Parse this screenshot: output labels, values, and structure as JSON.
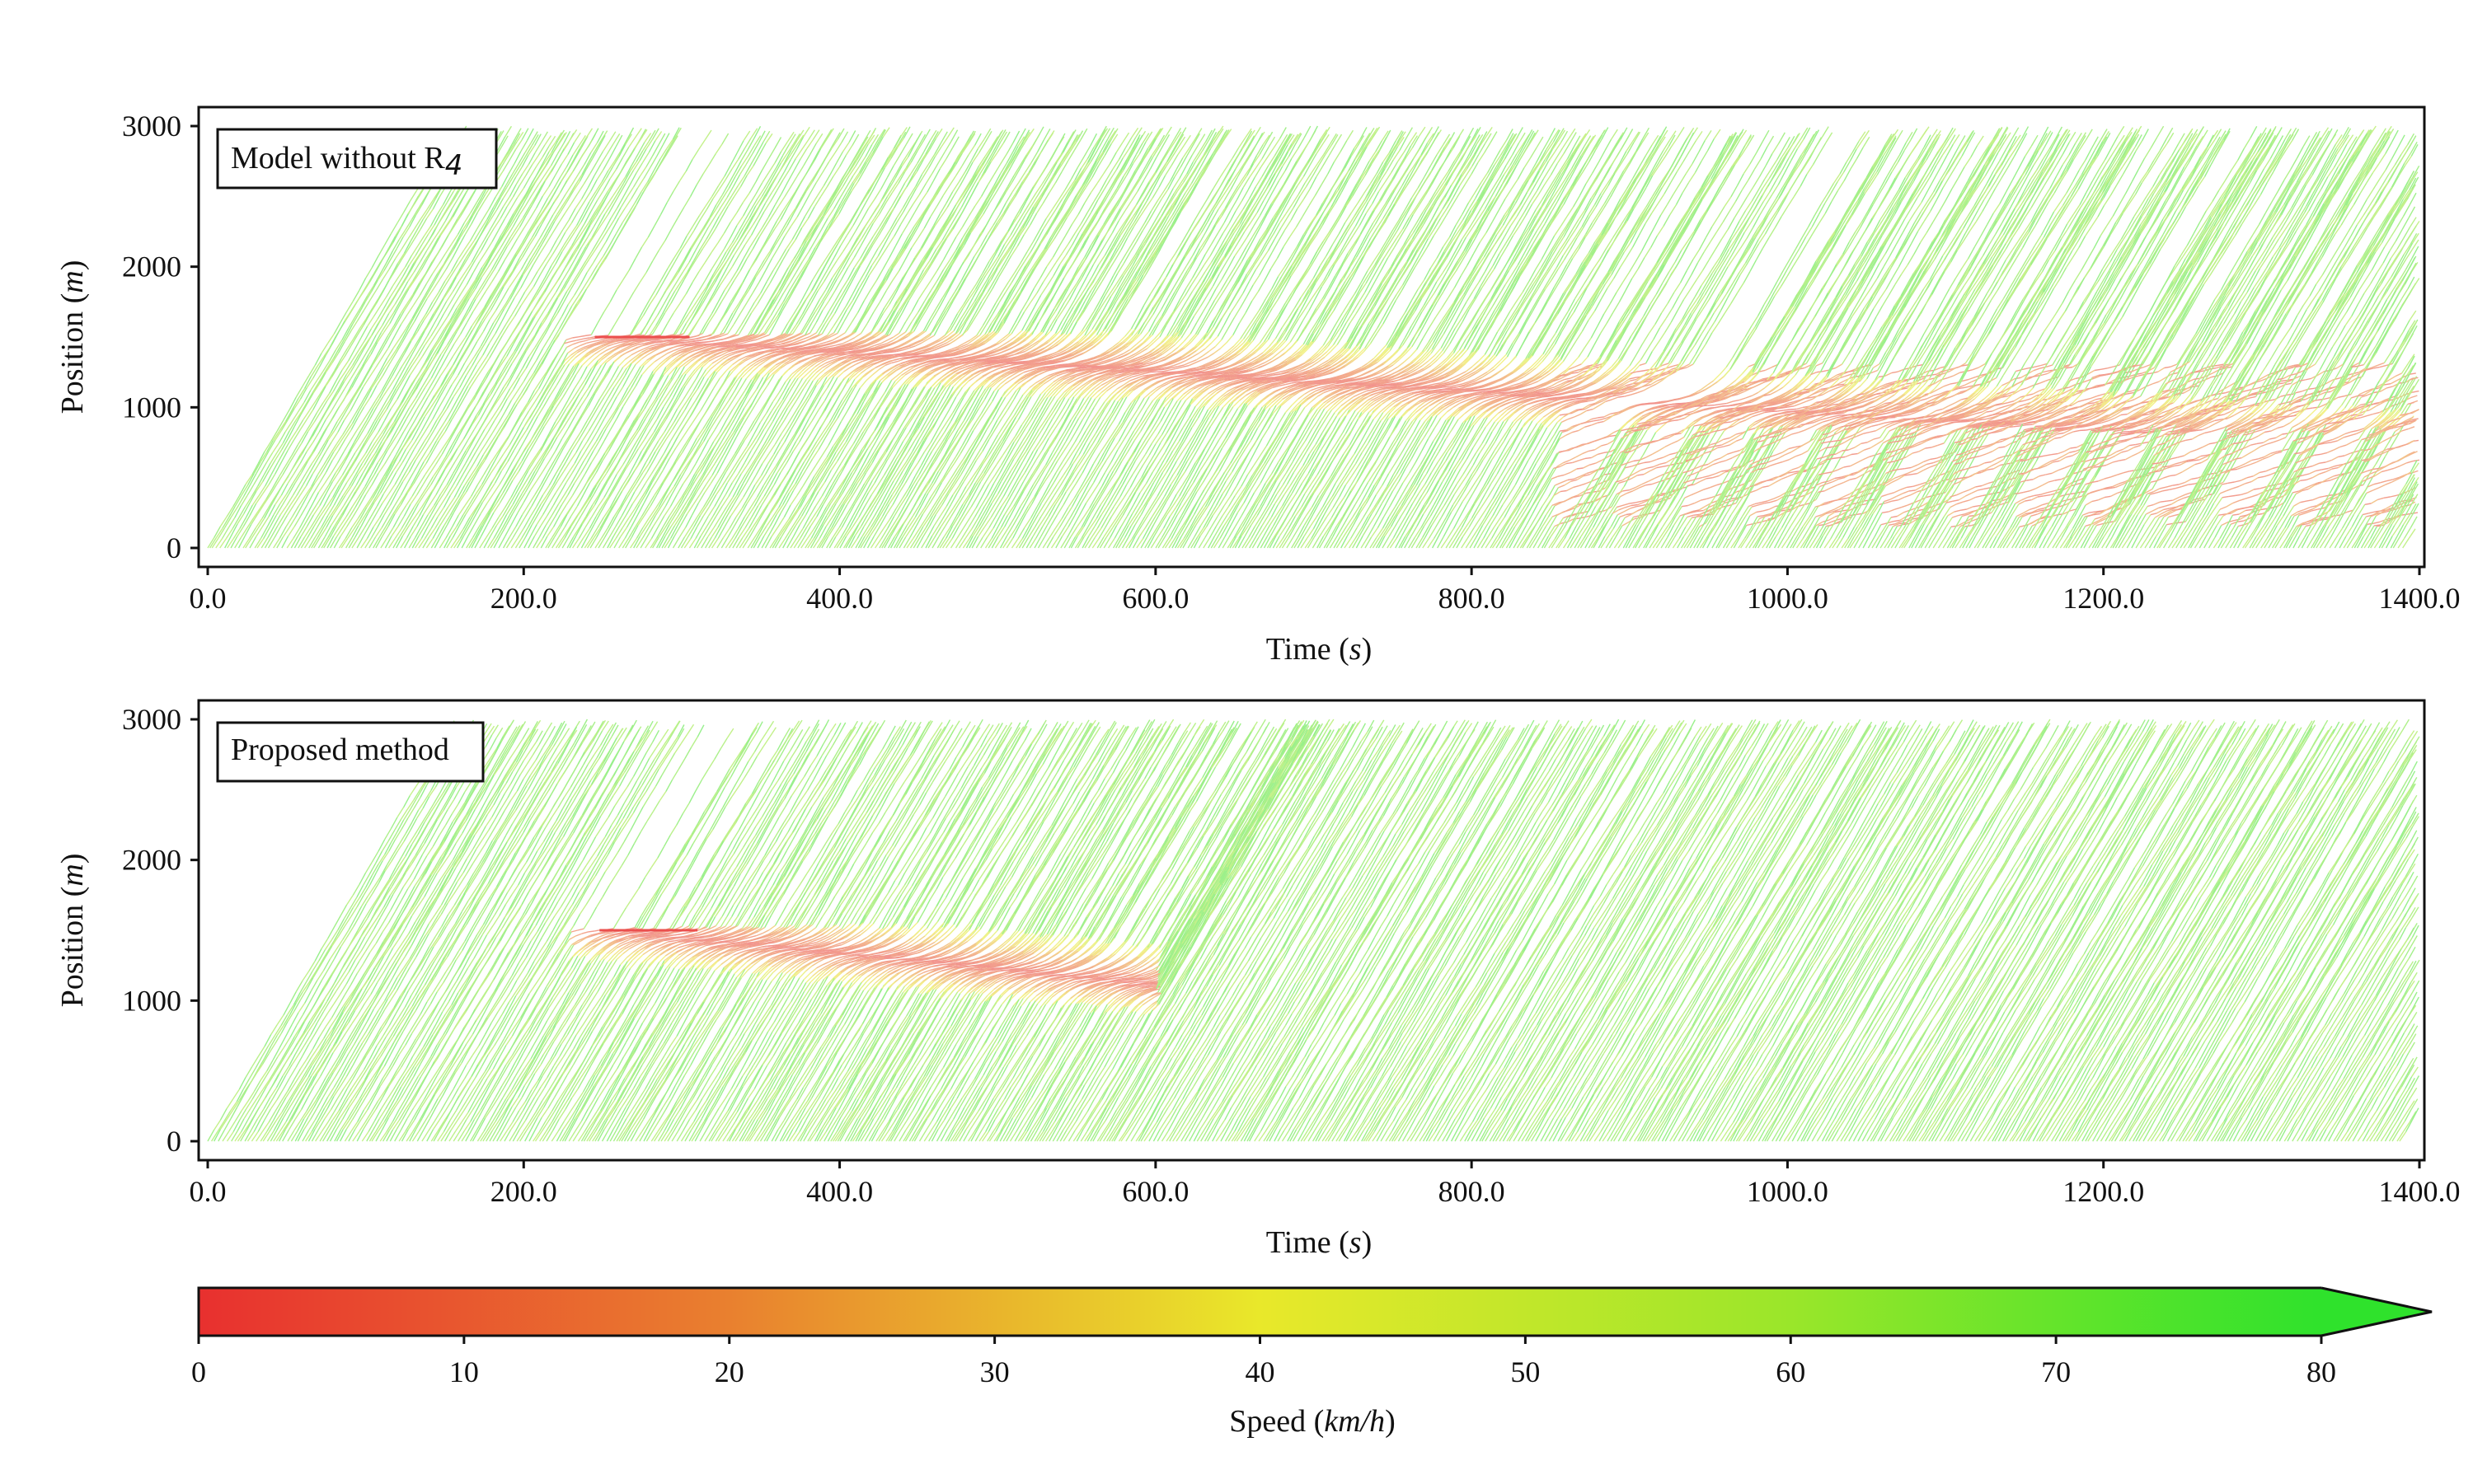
{
  "chart_data": [
    {
      "type": "line",
      "panel": "top",
      "legend_label": "Model without R",
      "legend_subscript": "4",
      "xlabel": "Time (s)",
      "ylabel": "Position (m)",
      "xlim": [
        0,
        1400
      ],
      "ylim": [
        0,
        3000
      ],
      "xticks": [
        "0.0",
        "200.0",
        "400.0",
        "600.0",
        "800.0",
        "1000.0",
        "1200.0",
        "1400.0"
      ],
      "yticks": [
        "0",
        "1000",
        "2000",
        "3000"
      ],
      "x_tick_values": [
        0,
        200,
        400,
        600,
        800,
        1000,
        1200,
        1400
      ],
      "y_tick_values": [
        0,
        1000,
        2000,
        3000
      ],
      "series_description": "Vehicle trajectories (space-time) colored by speed",
      "stopped_vehicle": {
        "position_m": 1500,
        "start_s": 245,
        "end_s": 305
      },
      "free_flow_speed_kmh": 70,
      "congestion": {
        "persistent": true,
        "front_positions_m": [
          1500,
          1200,
          900,
          500
        ]
      },
      "grid": false
    },
    {
      "type": "line",
      "panel": "bottom",
      "legend_label": "Proposed method",
      "xlabel": "Time (s)",
      "ylabel": "Position (m)",
      "xlim": [
        0,
        1400
      ],
      "ylim": [
        0,
        3000
      ],
      "xticks": [
        "0.0",
        "200.0",
        "400.0",
        "600.0",
        "800.0",
        "1000.0",
        "1200.0",
        "1400.0"
      ],
      "yticks": [
        "0",
        "1000",
        "2000",
        "3000"
      ],
      "x_tick_values": [
        0,
        200,
        400,
        600,
        800,
        1000,
        1200,
        1400
      ],
      "y_tick_values": [
        0,
        1000,
        2000,
        3000
      ],
      "series_description": "Vehicle trajectories (space-time) colored by speed",
      "stopped_vehicle": {
        "position_m": 1500,
        "start_s": 248,
        "end_s": 310
      },
      "free_flow_speed_kmh": 70,
      "congestion": {
        "persistent": false,
        "dissipates_by_s": 600
      },
      "grid": false
    }
  ],
  "colorbar": {
    "label": "Speed (km/h)",
    "ticks": [
      "0",
      "10",
      "20",
      "30",
      "40",
      "50",
      "60",
      "70",
      "80"
    ],
    "tick_values": [
      0,
      10,
      20,
      30,
      40,
      50,
      60,
      70,
      80
    ],
    "range": [
      0,
      80
    ],
    "extend": "max",
    "colors": {
      "low": "#e8302f",
      "mid": "#e9e82a",
      "high": "#27e02a"
    }
  },
  "labels": {
    "time_prefix": "Time (",
    "time_unit": "s",
    "time_suffix": ")",
    "pos_prefix": "Position (",
    "pos_unit": "m",
    "pos_suffix": ")",
    "speed_prefix": "Speed (",
    "speed_unit": "km/h",
    "speed_suffix": ")"
  }
}
